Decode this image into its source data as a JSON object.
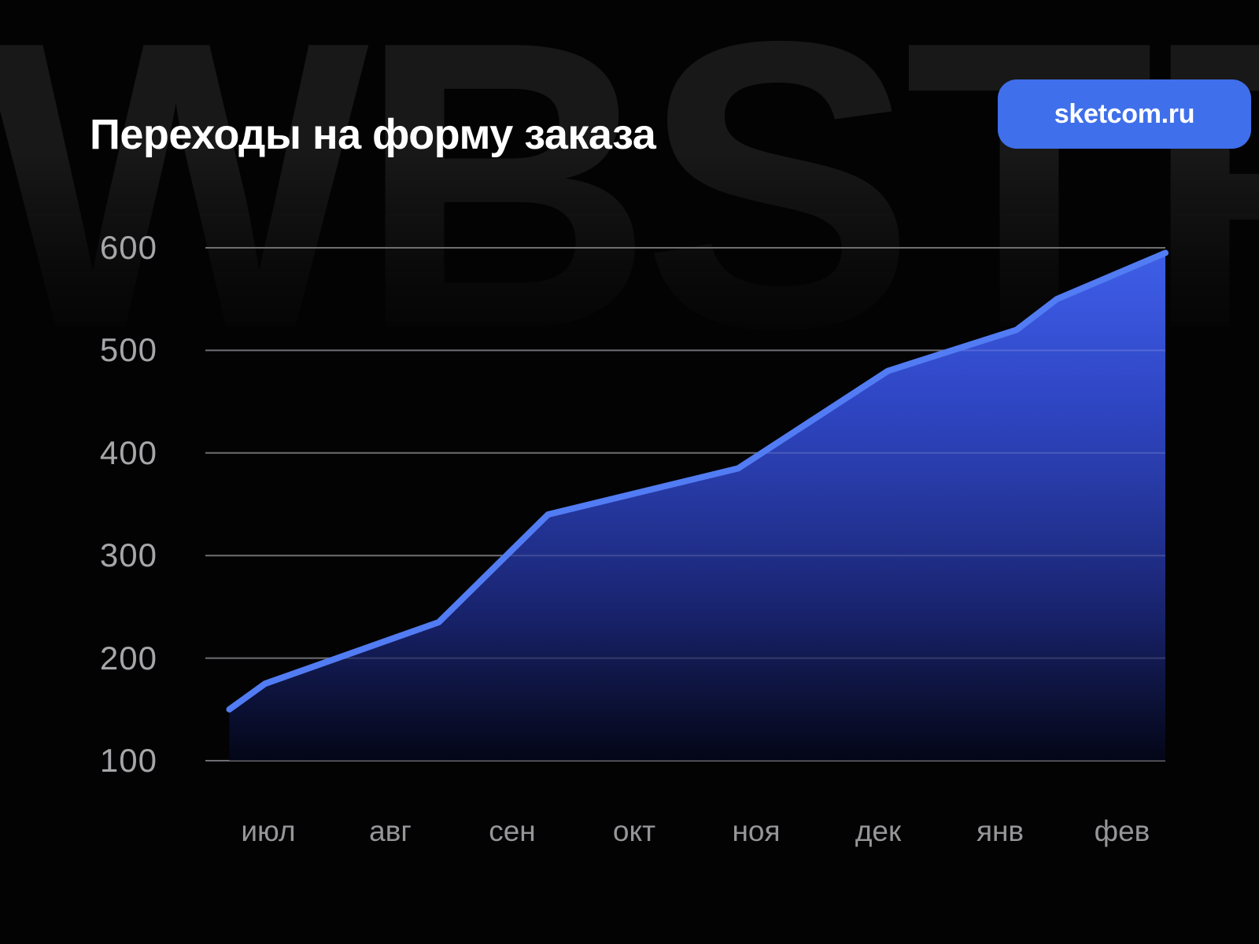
{
  "page": {
    "background": "#030303"
  },
  "watermark": {
    "text": "WBSTR",
    "color": "#181818"
  },
  "header": {
    "title": "Переходы на форму заказа",
    "title_color": "#FFFFFF"
  },
  "badge": {
    "label": "sketcom.ru",
    "color": "#3F6FEA",
    "text_color": "#FFFFFF"
  },
  "chart_data": {
    "type": "area",
    "title": "Переходы на форму заказа",
    "categories": [
      "июл",
      "авг",
      "сен",
      "окт",
      "ноя",
      "дек",
      "янв",
      "фев"
    ],
    "monthly_values": [
      175,
      215,
      300,
      360,
      395,
      470,
      515,
      575
    ],
    "y_ticks": [
      100,
      200,
      300,
      400,
      500,
      600
    ],
    "ylim": [
      100,
      620
    ],
    "xlabel": "",
    "ylabel": "",
    "grid": "horizontal",
    "legend": "none",
    "line_color": "#527CF3",
    "grid_color": "#6F6F73",
    "grid_overlay_color": "rgba(255,255,255,0.15)",
    "y_tick_color": "#A6A6AA",
    "x_tick_color": "#96969A",
    "area_gradient_stops": [
      {
        "offset": 0.0,
        "color": "#3E5FE6"
      },
      {
        "offset": 0.1,
        "color": "#3A57DE"
      },
      {
        "offset": 0.3,
        "color": "#2F46C4"
      },
      {
        "offset": 0.5,
        "color": "#25379E"
      },
      {
        "offset": 0.7,
        "color": "#192470"
      },
      {
        "offset": 0.88,
        "color": "#0C1238"
      },
      {
        "offset": 1.0,
        "color": "#040617"
      }
    ],
    "line_points": [
      {
        "x": 0.025,
        "value": 150
      },
      {
        "x": 0.062,
        "value": 175
      },
      {
        "x": 0.243,
        "value": 235
      },
      {
        "x": 0.357,
        "value": 340
      },
      {
        "x": 0.555,
        "value": 385
      },
      {
        "x": 0.711,
        "value": 480
      },
      {
        "x": 0.845,
        "value": 520
      },
      {
        "x": 0.887,
        "value": 550
      },
      {
        "x": 1.0,
        "value": 595
      }
    ]
  }
}
